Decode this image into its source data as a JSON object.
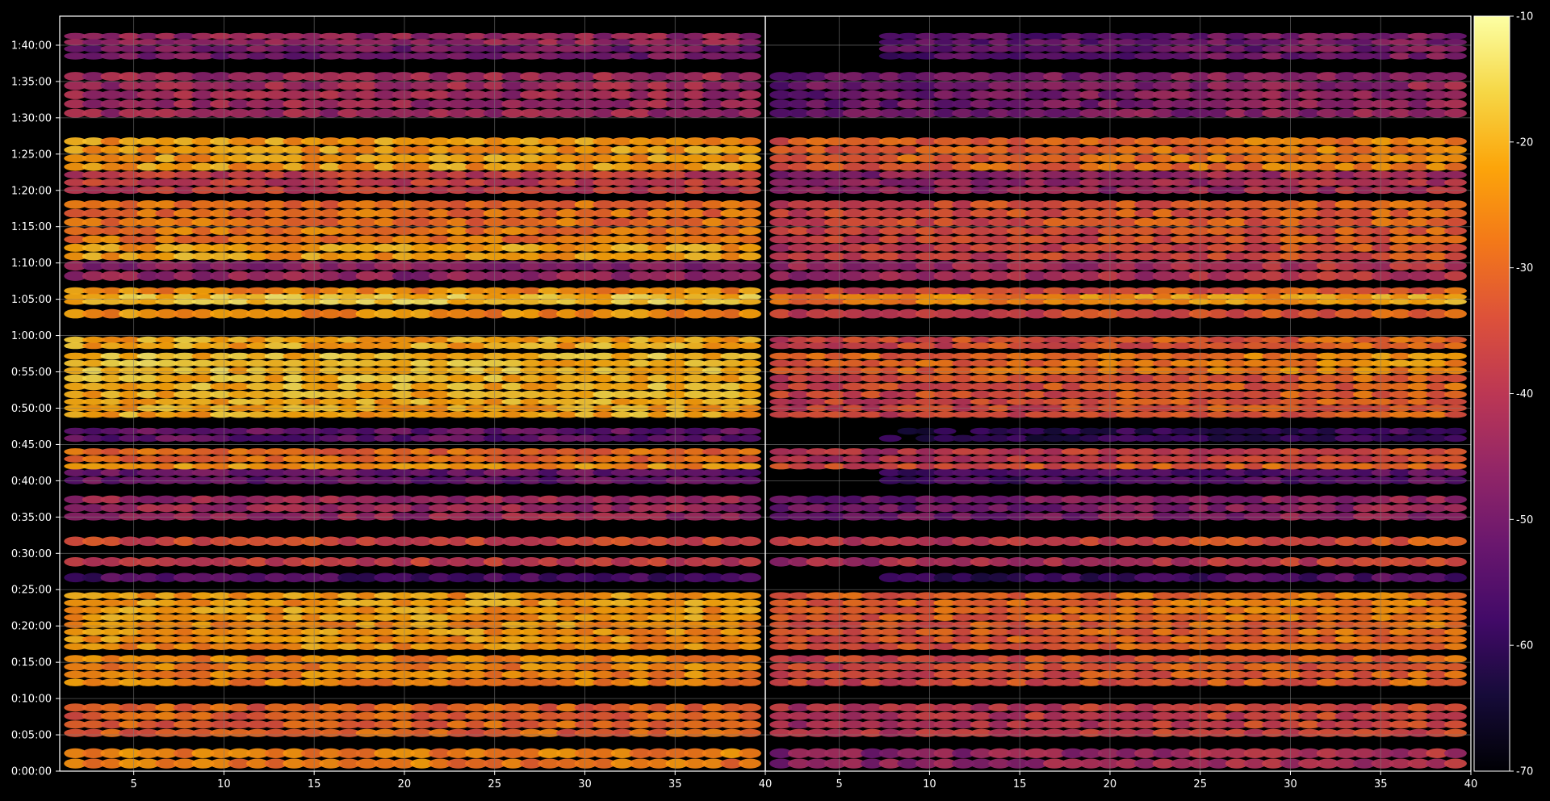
{
  "chart_data": {
    "type": "heatmap",
    "title": "",
    "xlabel": "",
    "ylabel": "",
    "panels": [
      {
        "name": "",
        "x_range": [
          1,
          40
        ],
        "x_ticks": [
          "5",
          "10",
          "15",
          "20",
          "25",
          "30",
          "35",
          "40"
        ]
      },
      {
        "name": "",
        "x_range": [
          1,
          40
        ],
        "x_ticks": [
          "5",
          "10",
          "15",
          "20",
          "25",
          "30",
          "35",
          "40"
        ]
      }
    ],
    "y_range_seconds": [
      0,
      6240
    ],
    "y_ticks": [
      "0:00:00",
      "0:05:00",
      "0:10:00",
      "0:15:00",
      "0:20:00",
      "0:25:00",
      "0:30:00",
      "0:35:00",
      "0:40:00",
      "0:45:00",
      "0:50:00",
      "0:55:00",
      "1:00:00",
      "1:05:00",
      "1:10:00",
      "1:15:00",
      "1:20:00",
      "1:25:00",
      "1:30:00",
      "1:35:00",
      "1:40:00"
    ],
    "grid": true,
    "colormap": "inferno",
    "colorbar": {
      "range": [
        -70,
        -10
      ],
      "ticks": [
        "-10",
        "-20",
        "-30",
        "-40",
        "-50",
        "-60",
        "-70"
      ]
    },
    "colors": {
      "background": "#000000",
      "grid": "#7a7a7a",
      "axis": "#ffffff"
    },
    "time_bands": [
      {
        "start": "0:00:20",
        "end": "0:03:10",
        "level_left": -27,
        "level_right": -44,
        "rows": 2
      },
      {
        "start": "0:04:40",
        "end": "0:09:20",
        "level_left": -31,
        "level_right": -38,
        "rows": 4
      },
      {
        "start": "0:11:40",
        "end": "0:16:00",
        "level_left": -26,
        "level_right": -33,
        "rows": 4
      },
      {
        "start": "0:16:40",
        "end": "0:20:40",
        "level_left": -24,
        "level_right": -31,
        "rows": 4
      },
      {
        "start": "0:20:40",
        "end": "0:24:40",
        "level_left": -23,
        "level_right": -29,
        "rows": 4
      },
      {
        "start": "0:26:00",
        "end": "0:27:20",
        "level_left": -56,
        "level_right": -58,
        "rows": 1
      },
      {
        "start": "0:28:10",
        "end": "0:29:30",
        "level_left": -38,
        "level_right": -40,
        "rows": 1
      },
      {
        "start": "0:31:00",
        "end": "0:32:20",
        "level_left": -35,
        "level_right": -36,
        "rows": 1
      },
      {
        "start": "0:34:30",
        "end": "0:38:00",
        "level_left": -44,
        "level_right": -48,
        "rows": 3
      },
      {
        "start": "0:39:30",
        "end": "0:41:40",
        "level_left": -52,
        "level_right": -56,
        "rows": 2
      },
      {
        "start": "0:41:40",
        "end": "0:42:20",
        "level_left": -24,
        "level_right": -32,
        "rows": 1
      },
      {
        "start": "0:42:30",
        "end": "0:44:30",
        "level_left": -30,
        "level_right": -38,
        "rows": 2
      },
      {
        "start": "0:45:20",
        "end": "0:47:20",
        "level_left": -53,
        "level_right": -60,
        "rows": 2
      },
      {
        "start": "0:48:40",
        "end": "0:51:20",
        "level_left": -21,
        "level_right": -34,
        "rows": 3
      },
      {
        "start": "0:51:20",
        "end": "0:54:40",
        "level_left": -20,
        "level_right": -33,
        "rows": 3
      },
      {
        "start": "0:54:40",
        "end": "0:57:40",
        "level_left": -19,
        "level_right": -28,
        "rows": 3
      },
      {
        "start": "0:58:10",
        "end": "0:59:50",
        "level_left": -21,
        "level_right": -33,
        "rows": 2
      },
      {
        "start": "1:02:20",
        "end": "1:03:40",
        "level_left": -25,
        "level_right": -34,
        "rows": 1
      },
      {
        "start": "1:04:20",
        "end": "1:05:40",
        "level_left": -18,
        "level_right": -24,
        "rows": 2
      },
      {
        "start": "1:05:40",
        "end": "1:06:40",
        "level_left": -25,
        "level_right": -34,
        "rows": 1
      },
      {
        "start": "1:07:30",
        "end": "1:10:20",
        "level_left": -46,
        "level_right": -42,
        "rows": 2
      },
      {
        "start": "1:10:20",
        "end": "1:12:40",
        "level_left": -22,
        "level_right": -36,
        "rows": 2
      },
      {
        "start": "1:12:40",
        "end": "1:15:00",
        "level_left": -28,
        "level_right": -34,
        "rows": 2
      },
      {
        "start": "1:15:00",
        "end": "1:18:40",
        "level_left": -29,
        "level_right": -33,
        "rows": 3
      },
      {
        "start": "1:19:30",
        "end": "1:22:40",
        "level_left": -38,
        "level_right": -44,
        "rows": 3
      },
      {
        "start": "1:22:40",
        "end": "1:27:20",
        "level_left": -23,
        "level_right": -29,
        "rows": 4
      },
      {
        "start": "1:30:00",
        "end": "1:36:20",
        "level_left": -44,
        "level_right": -48,
        "rows": 5
      },
      {
        "start": "1:38:00",
        "end": "1:40:00",
        "level_left": -50,
        "level_right": -52,
        "rows": 2
      },
      {
        "start": "1:40:00",
        "end": "1:41:40",
        "level_left": -45,
        "level_right": -52,
        "rows": 2
      }
    ]
  }
}
